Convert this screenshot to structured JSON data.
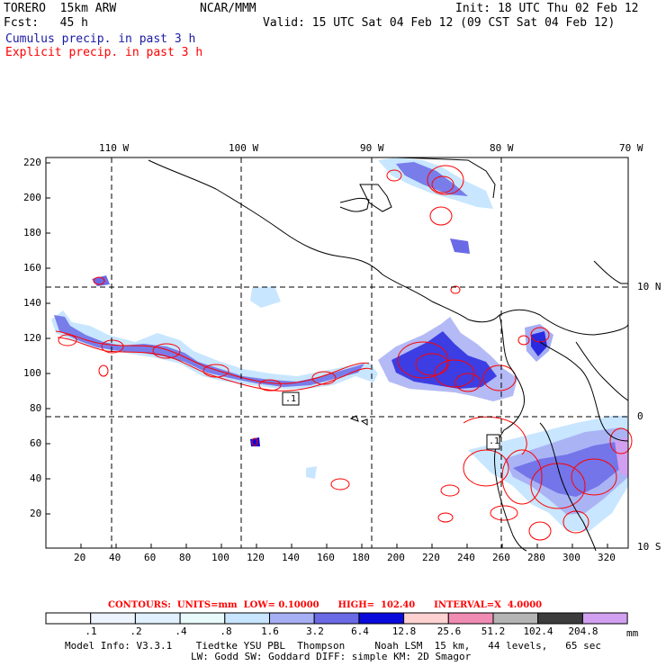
{
  "header": {
    "left_line1": "TORERO  15km ARW",
    "center_line1": "NCAR/MMM",
    "right_line1": "Init: 18 UTC Thu 02 Feb 12",
    "left_line2": "Fcst:   45 h",
    "right_line2": "Valid: 15 UTC Sat 04 Feb 12 (09 CST Sat 04 Feb 12)",
    "legend_cumulus": "Cumulus precip. in past 3 h",
    "legend_explicit": "Explicit precip. in past 3 h",
    "color_cumulus": "#1a1aa6",
    "color_explicit": "#ff0000"
  },
  "map": {
    "top_lon_labels": [
      "110 W",
      "100 W",
      "90 W",
      "80 W",
      "70 W"
    ],
    "right_lat_labels": [
      "10 N",
      "0",
      "10 S"
    ],
    "y_ticks": [
      "220",
      "200",
      "180",
      "160",
      "140",
      "120",
      "100",
      "80",
      "60",
      "40",
      "20"
    ],
    "x_ticks": [
      "20",
      "40",
      "60",
      "80",
      "100",
      "120",
      "140",
      "160",
      "180",
      "200",
      "220",
      "240",
      "260",
      "280",
      "300",
      "320"
    ],
    "contour_labels": [
      ".1",
      ".1"
    ]
  },
  "footer": {
    "contours_text": "CONTOURS:  UNITS=mm  LOW= 0.10000      HIGH=  102.40      INTERVAL=X  4.0000",
    "colorbar_labels": [
      ".1",
      ".2",
      ".4",
      ".8",
      "1.6",
      "3.2",
      "6.4",
      "12.8",
      "25.6",
      "51.2",
      "102.4",
      "204.8"
    ],
    "colorbar_units": "mm",
    "colorbar_colors": [
      "#ffffff",
      "#eef4ff",
      "#e0f0ff",
      "#e8fafa",
      "#c8e6ff",
      "#a6aef4",
      "#6a6ae6",
      "#0a0adc",
      "#ffd2d2",
      "#f08cb4",
      "#b4b4b4",
      "#3c3c3c",
      "#d2a0f0"
    ],
    "model_info_line1": "Model Info: V3.3.1    Tiedtke YSU PBL  Thompson     Noah LSM  15 km,   44 levels,   65 sec",
    "model_info_line2": "LW: Godd SW: Goddard DIFF: simple KM: 2D Smagor"
  }
}
